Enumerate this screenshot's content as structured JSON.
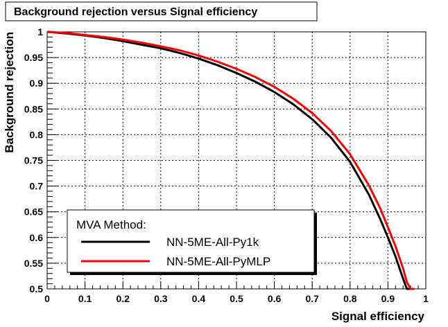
{
  "chart_data": {
    "type": "line",
    "title": "Background rejection versus Signal efficiency",
    "xlabel": "Signal efficiency",
    "ylabel": "Background rejection",
    "xlim": [
      0,
      1
    ],
    "ylim": [
      0.5,
      1
    ],
    "x_ticks": [
      "0",
      "0.1",
      "0.2",
      "0.3",
      "0.4",
      "0.5",
      "0.6",
      "0.7",
      "0.8",
      "0.9",
      "1"
    ],
    "y_ticks": [
      "0.5",
      "0.55",
      "0.6",
      "0.65",
      "0.7",
      "0.75",
      "0.8",
      "0.85",
      "0.9",
      "0.95",
      "1"
    ],
    "grid": true,
    "legend_title": "MVA Method:",
    "legend_position": "bottom-left",
    "series": [
      {
        "name": "NN-5ME-All-Py1k",
        "color": "#000000",
        "x": [
          0,
          0.05,
          0.1,
          0.15,
          0.2,
          0.25,
          0.3,
          0.35,
          0.4,
          0.45,
          0.5,
          0.55,
          0.6,
          0.65,
          0.7,
          0.75,
          0.8,
          0.85,
          0.88,
          0.9,
          0.92,
          0.94,
          0.95,
          0.96,
          0.965
        ],
        "y": [
          1.0,
          0.997,
          0.993,
          0.988,
          0.982,
          0.975,
          0.968,
          0.959,
          0.948,
          0.935,
          0.92,
          0.903,
          0.883,
          0.859,
          0.83,
          0.794,
          0.747,
          0.683,
          0.635,
          0.6,
          0.563,
          0.52,
          0.5,
          0.5,
          0.5
        ]
      },
      {
        "name": "NN-5ME-All-PyMLP",
        "color": "#ff0000",
        "x": [
          0,
          0.05,
          0.1,
          0.15,
          0.2,
          0.25,
          0.3,
          0.35,
          0.4,
          0.45,
          0.5,
          0.55,
          0.6,
          0.65,
          0.7,
          0.75,
          0.8,
          0.85,
          0.88,
          0.9,
          0.92,
          0.94,
          0.95,
          0.96,
          0.97
        ],
        "y": [
          1.0,
          0.998,
          0.994,
          0.99,
          0.985,
          0.979,
          0.972,
          0.964,
          0.954,
          0.942,
          0.928,
          0.912,
          0.893,
          0.87,
          0.842,
          0.807,
          0.762,
          0.701,
          0.656,
          0.62,
          0.583,
          0.54,
          0.513,
          0.5,
          0.5
        ]
      }
    ]
  }
}
